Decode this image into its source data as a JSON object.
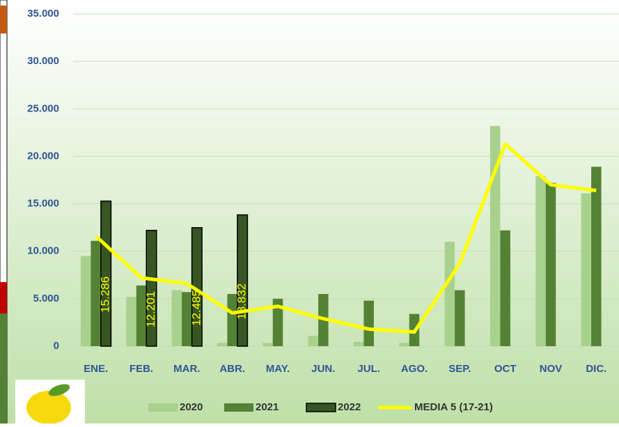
{
  "chart_data": {
    "type": "bar",
    "categories": [
      "ENE.",
      "FEB.",
      "MAR.",
      "ABR.",
      "MAY.",
      "JUN.",
      "JUL.",
      "AGO.",
      "SEP.",
      "OCT",
      "NOV",
      "DIC."
    ],
    "series": [
      {
        "name": "2020",
        "color": "#a9d18e",
        "values": [
          9500,
          5200,
          5900,
          350,
          350,
          1100,
          450,
          350,
          11000,
          23200,
          17900,
          16100
        ]
      },
      {
        "name": "2021",
        "color": "#548235",
        "values": [
          11100,
          6400,
          5700,
          5500,
          5000,
          5500,
          4800,
          3400,
          5900,
          12200,
          17200,
          18900
        ]
      },
      {
        "name": "2022",
        "color": "#375623",
        "values": [
          15286,
          12201,
          12485,
          13832,
          null,
          null,
          null,
          null,
          null,
          null,
          null,
          null
        ],
        "value_labels": [
          "15.286",
          "12.201",
          "12.485",
          "13.832",
          null,
          null,
          null,
          null,
          null,
          null,
          null,
          null
        ]
      },
      {
        "name": "MEDIA 5 (17-21)",
        "color": "#ffff00",
        "type": "line",
        "values": [
          11600,
          7200,
          6600,
          3500,
          4200,
          2900,
          1800,
          1500,
          8700,
          21300,
          17000,
          16400
        ]
      }
    ],
    "ylim": [
      0,
      35000
    ],
    "yticks": [
      0,
      {
        "value": 5000,
        "label": "5.000"
      },
      {
        "value": 10000,
        "label": "10.000"
      },
      {
        "value": 15000,
        "label": "15.000"
      },
      {
        "value": 20000,
        "label": "20.000"
      },
      {
        "value": 25000,
        "label": "25.000"
      },
      {
        "value": 30000,
        "label": "30.000"
      },
      {
        "value": 35000,
        "label": "35.000"
      }
    ],
    "grid": true
  }
}
